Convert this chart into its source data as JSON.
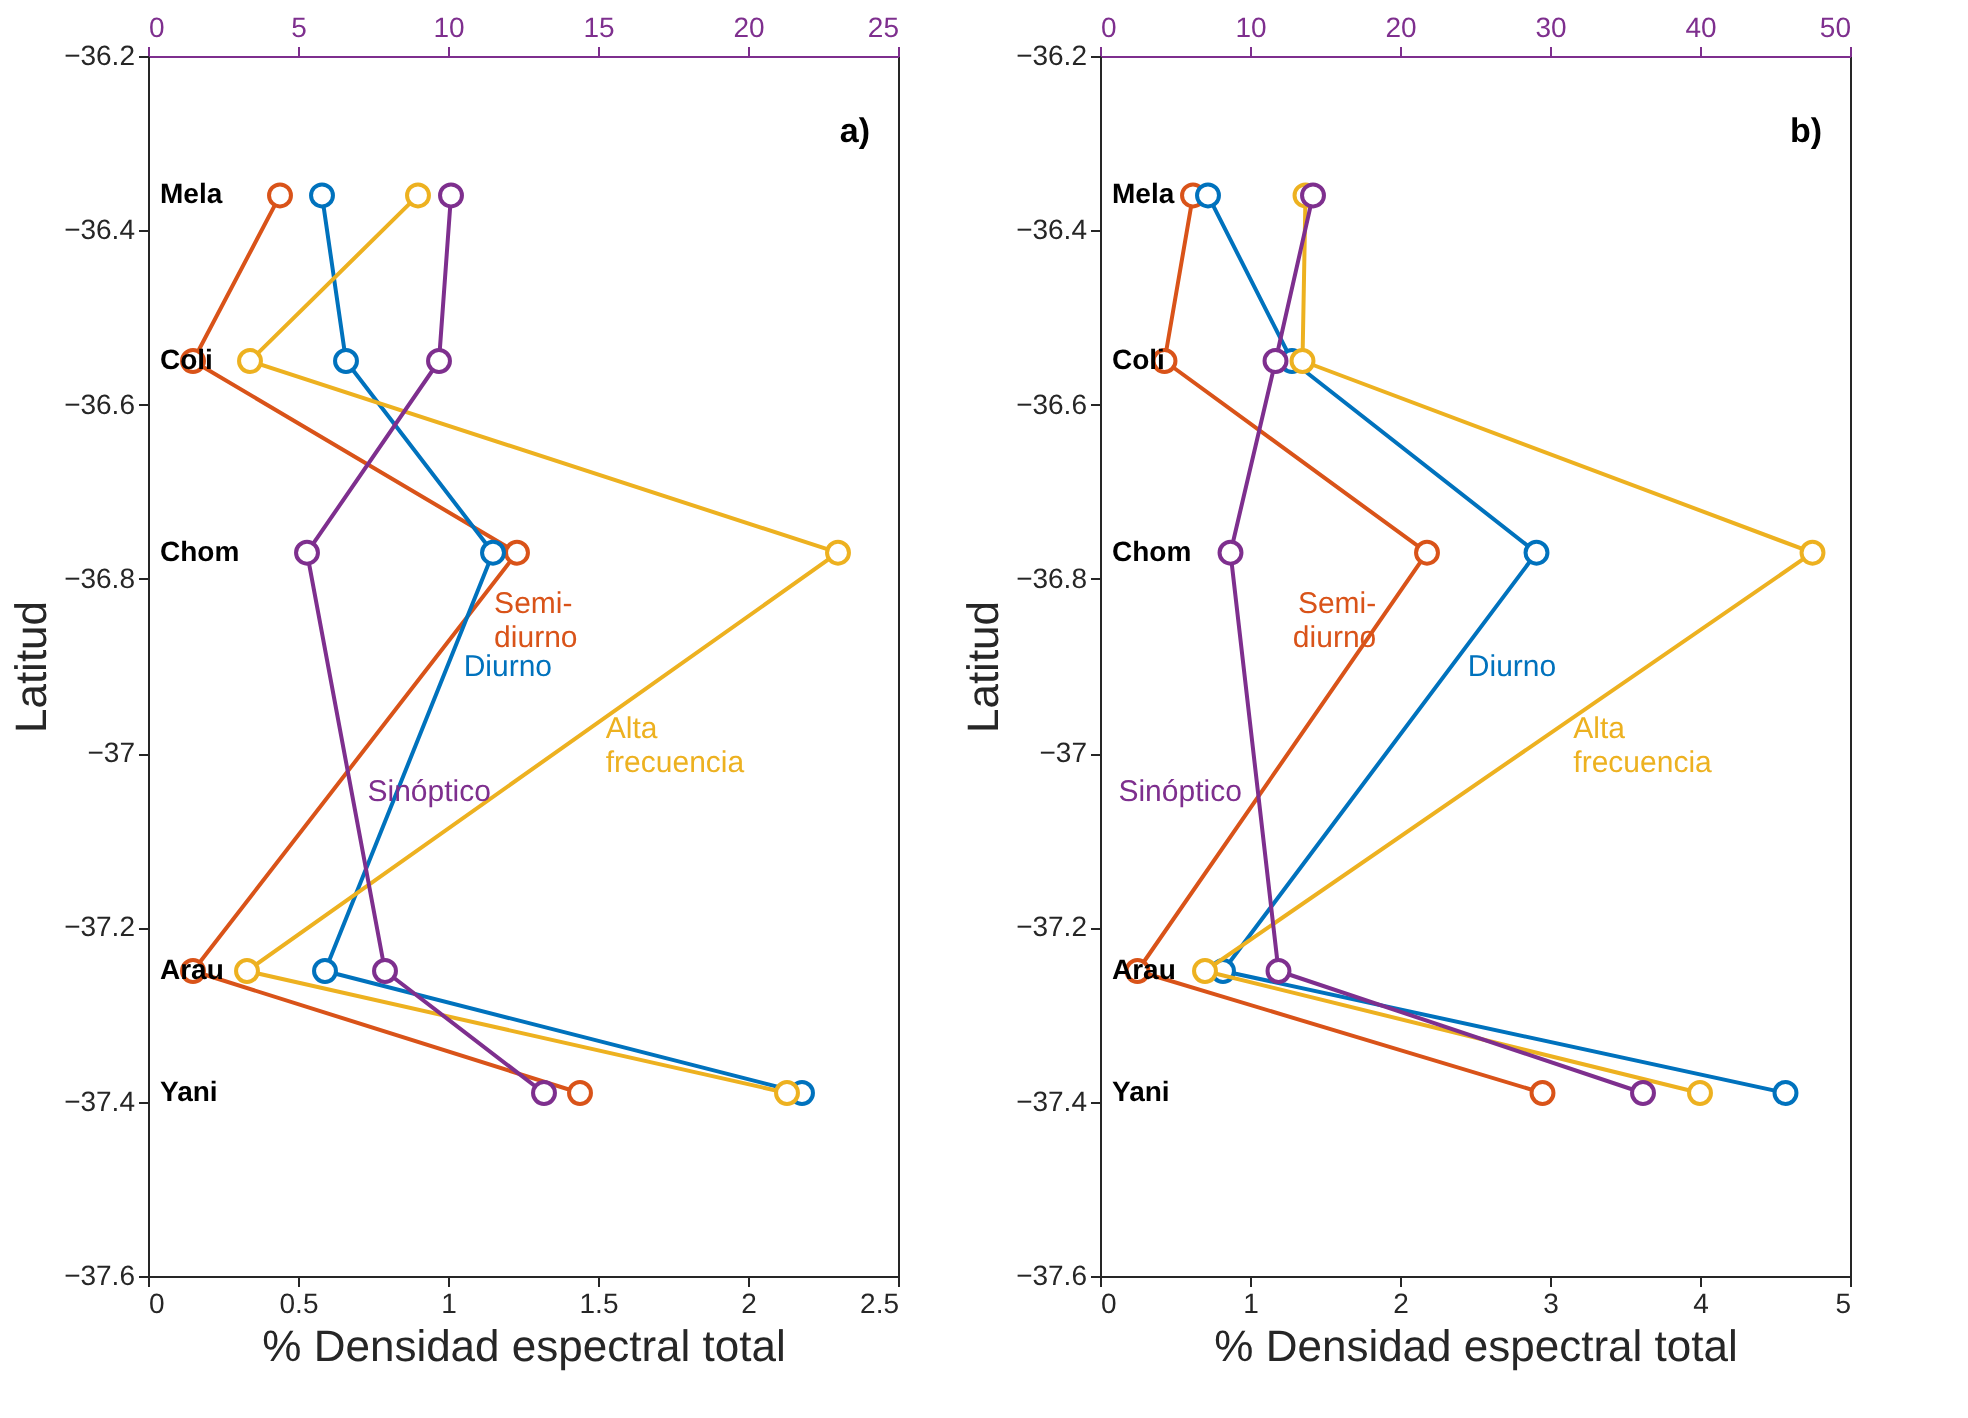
{
  "chart_data": [
    {
      "type": "line",
      "xlabel": "% Densidad espectral total",
      "ylabel": "Latitud",
      "xlim": [
        0,
        2.5
      ],
      "xticks": [
        0,
        0.5,
        1,
        1.5,
        2,
        2.5
      ],
      "x2lim": [
        0,
        25
      ],
      "x2ticks": [
        0,
        5,
        10,
        15,
        20,
        25
      ],
      "ylim": [
        -37.6,
        -36.2
      ],
      "yticks": [
        -37.6,
        -37.4,
        -37.2,
        -37,
        -36.8,
        -36.6,
        -36.4,
        -36.2
      ],
      "marker": "circle",
      "grid": false,
      "annotations": [
        "a)",
        "Mela",
        "Coli",
        "Chom",
        "Arau",
        "Yani"
      ],
      "series": [
        {
          "name": "Semi-diurno",
          "color": "#d95319",
          "x": [
            0.44,
            0.15,
            1.23,
            0.15,
            1.44
          ],
          "values": [
            -36.36,
            -36.55,
            -36.77,
            -37.25,
            -37.39
          ]
        },
        {
          "name": "Diurno",
          "color": "#0072bd",
          "x": [
            0.58,
            0.66,
            1.15,
            0.59,
            2.18
          ],
          "values": [
            -36.36,
            -36.55,
            -36.77,
            -37.25,
            -37.39
          ]
        },
        {
          "name": "Alta frecuencia",
          "color": "#edb120",
          "x": [
            0.9,
            0.34,
            2.3,
            0.33,
            2.13
          ],
          "values": [
            -36.36,
            -36.55,
            -36.77,
            -37.25,
            -37.39
          ]
        },
        {
          "name": "Sinóptico",
          "color": "#7e2f8e",
          "axis": "x2",
          "x": [
            10.1,
            9.7,
            5.3,
            7.9,
            13.2
          ],
          "values": [
            -36.36,
            -36.55,
            -36.77,
            -37.25,
            -37.39
          ]
        }
      ]
    },
    {
      "type": "line",
      "xlabel": "% Densidad espectral total",
      "ylabel": "Latitud",
      "xlim": [
        0,
        5
      ],
      "xticks": [
        0,
        1,
        2,
        3,
        4,
        5
      ],
      "x2lim": [
        0,
        50
      ],
      "x2ticks": [
        0,
        10,
        20,
        30,
        40,
        50
      ],
      "ylim": [
        -37.6,
        -36.2
      ],
      "yticks": [
        -37.6,
        -37.4,
        -37.2,
        -37,
        -36.8,
        -36.6,
        -36.4,
        -36.2
      ],
      "marker": "circle",
      "grid": false,
      "annotations": [
        "b)",
        "Mela",
        "Coli",
        "Chom",
        "Arau",
        "Yani"
      ],
      "series": [
        {
          "name": "Semi-diurno",
          "color": "#d95319",
          "x": [
            0.62,
            0.43,
            2.18,
            0.25,
            2.95
          ],
          "values": [
            -36.36,
            -36.55,
            -36.77,
            -37.25,
            -37.39
          ]
        },
        {
          "name": "Diurno",
          "color": "#0072bd",
          "x": [
            0.72,
            1.28,
            2.91,
            0.82,
            4.57
          ],
          "values": [
            -36.36,
            -36.55,
            -36.77,
            -37.25,
            -37.39
          ]
        },
        {
          "name": "Alta frecuencia",
          "color": "#edb120",
          "x": [
            1.37,
            1.35,
            4.75,
            0.7,
            4.0
          ],
          "values": [
            -36.36,
            -36.55,
            -36.77,
            -37.25,
            -37.39
          ]
        },
        {
          "name": "Sinóptico",
          "color": "#7e2f8e",
          "axis": "x2",
          "x": [
            14.2,
            11.7,
            8.7,
            11.9,
            36.2
          ],
          "values": [
            -36.36,
            -36.55,
            -36.77,
            -37.25,
            -37.39
          ]
        }
      ]
    }
  ]
}
